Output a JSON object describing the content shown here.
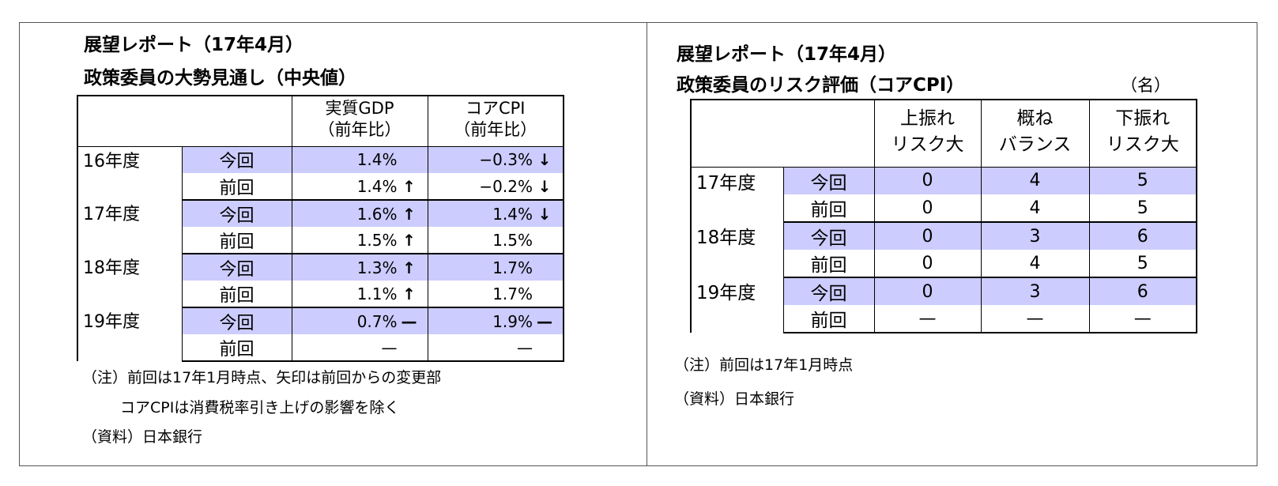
{
  "left": {
    "title_line1": "展望レポート（17年4月）",
    "title_line2": "政策委員の大勢見通し（中央値）",
    "columns": [
      "実質GDP",
      "（前年比）",
      "コアCPI",
      "（前年比）"
    ],
    "rows": [
      {
        "year": "16年度",
        "label": "今回",
        "gdp": "1.4%",
        "gdp_arrow": "",
        "cpi": "−0.3%",
        "cpi_arrow": "↓"
      },
      {
        "year": "",
        "label": "前回",
        "gdp": "1.4%",
        "gdp_arrow": "↑",
        "cpi": "−0.2%",
        "cpi_arrow": "↓"
      },
      {
        "year": "17年度",
        "label": "今回",
        "gdp": "1.6%",
        "gdp_arrow": "↑",
        "cpi": "1.4%",
        "cpi_arrow": "↓"
      },
      {
        "year": "",
        "label": "前回",
        "gdp": "1.5%",
        "gdp_arrow": "↑",
        "cpi": "1.5%",
        "cpi_arrow": ""
      },
      {
        "year": "18年度",
        "label": "今回",
        "gdp": "1.3%",
        "gdp_arrow": "↑",
        "cpi": "1.7%",
        "cpi_arrow": ""
      },
      {
        "year": "",
        "label": "前回",
        "gdp": "1.1%",
        "gdp_arrow": "↑",
        "cpi": "1.7%",
        "cpi_arrow": ""
      },
      {
        "year": "19年度",
        "label": "今回",
        "gdp": "0.7%",
        "gdp_arrow": "—",
        "cpi": "1.9%",
        "cpi_arrow": "—"
      },
      {
        "year": "",
        "label": "前回",
        "gdp": "—",
        "gdp_arrow": "",
        "cpi": "—",
        "cpi_arrow": ""
      }
    ],
    "notes": [
      "（注）前回は17年1月時点、矢印は前回からの変更部",
      "コアCPIは消費税率引き上げの影響を除く",
      "（資料）日本銀行"
    ]
  },
  "right": {
    "title_line1": "展望レポート（17年4月）",
    "title_line2": "政策委員のリスク評価（コアCPI）",
    "unit": "（名）",
    "columns": [
      "上振れ",
      "リスク大",
      "概ね",
      "バランス",
      "下振れ",
      "リスク大"
    ],
    "rows": [
      {
        "year": "17年度",
        "label": "今回",
        "up": "0",
        "bal": "4",
        "down": "5"
      },
      {
        "year": "",
        "label": "前回",
        "up": "0",
        "bal": "4",
        "down": "5"
      },
      {
        "year": "18年度",
        "label": "今回",
        "up": "0",
        "bal": "3",
        "down": "6"
      },
      {
        "year": "",
        "label": "前回",
        "up": "0",
        "bal": "4",
        "down": "5"
      },
      {
        "year": "19年度",
        "label": "今回",
        "up": "0",
        "bal": "3",
        "down": "6"
      },
      {
        "year": "",
        "label": "前回",
        "up": "—",
        "bal": "—",
        "down": "—"
      }
    ],
    "notes": [
      "（注）前回は17年1月時点",
      "（資料）日本銀行"
    ]
  }
}
